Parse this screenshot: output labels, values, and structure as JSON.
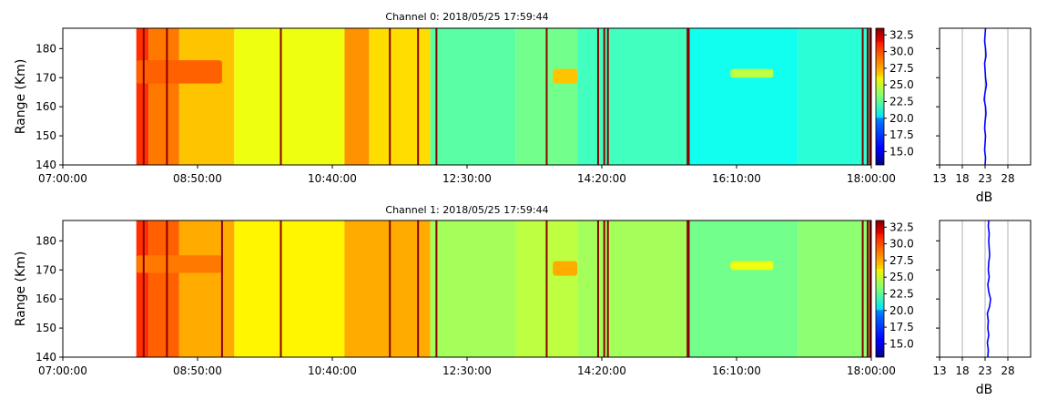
{
  "chart_data": [
    {
      "type": "heatmap",
      "title": "Channel 0: 2018/05/25 17:59:44",
      "ylabel": "Range (Km)",
      "xlim": [
        "07:00:00",
        "18:00:00"
      ],
      "ylim": [
        140,
        187
      ],
      "xticks": [
        "07:00:00",
        "08:50:00",
        "10:40:00",
        "12:30:00",
        "14:20:00",
        "16:10:00",
        "18:00:00"
      ],
      "yticks": [
        140,
        150,
        160,
        170,
        180
      ],
      "colorbar": {
        "min": 13,
        "max": 33.5,
        "ticks": [
          "15.0",
          "17.5",
          "20.0",
          "22.5",
          "25.0",
          "27.5",
          "30.0",
          "32.5"
        ],
        "colormap": "jet"
      },
      "data_start": "08:00:00",
      "segments": [
        {
          "start": "08:00:00",
          "end": "08:10:00",
          "db": 30
        },
        {
          "start": "08:10:00",
          "end": "08:35:00",
          "db": 28.5
        },
        {
          "start": "08:35:00",
          "end": "09:20:00",
          "db": 27
        },
        {
          "start": "09:20:00",
          "end": "10:50:00",
          "db": 25.5
        },
        {
          "start": "10:50:00",
          "end": "11:10:00",
          "db": 28
        },
        {
          "start": "11:10:00",
          "end": "12:00:00",
          "db": 26.5
        },
        {
          "start": "12:00:00",
          "end": "13:10:00",
          "db": 22.5
        },
        {
          "start": "13:10:00",
          "end": "14:00:00",
          "db": 23
        },
        {
          "start": "14:00:00",
          "end": "15:30:00",
          "db": 22
        },
        {
          "start": "15:30:00",
          "end": "17:00:00",
          "db": 21
        },
        {
          "start": "17:00:00",
          "end": "18:00:00",
          "db": 21.5
        }
      ],
      "strong_lines": [
        "08:06:00",
        "08:25:00",
        "09:58:00",
        "11:27:00",
        "11:50:00",
        "12:05:00",
        "13:35:00",
        "14:17:00",
        "14:22:00",
        "14:25:00",
        "15:30:00",
        "15:31:00",
        "17:53:00",
        "17:57:00",
        "17:59:00"
      ],
      "echo_patches": [
        {
          "start": "08:00:00",
          "end": "09:10:00",
          "range_min": 168,
          "range_max": 176,
          "db": 29
        },
        {
          "start": "13:40:00",
          "end": "14:00:00",
          "range_min": 168,
          "range_max": 173,
          "db": 27
        },
        {
          "start": "16:05:00",
          "end": "16:40:00",
          "range_min": 170,
          "range_max": 173,
          "db": 24.5
        }
      ],
      "profile": {
        "xlabel": "dB",
        "xlim": [
          13,
          33
        ],
        "xticks": [
          13,
          18,
          23,
          28
        ],
        "range": [
          140,
          142.5,
          145,
          147.5,
          150,
          152.5,
          155,
          157.5,
          160,
          162.5,
          165,
          167.5,
          170,
          172.5,
          175,
          177.5,
          180,
          182.5,
          185,
          187
        ],
        "values": [
          23,
          23.1,
          22.9,
          23,
          23.1,
          22.9,
          23,
          23.2,
          23.1,
          22.8,
          23,
          23.3,
          23.1,
          23,
          22.9,
          23.2,
          23.1,
          22.9,
          23,
          23.1
        ]
      }
    },
    {
      "type": "heatmap",
      "title": "Channel 1: 2018/05/25 17:59:44",
      "ylabel": "Range (Km)",
      "xlim": [
        "07:00:00",
        "18:00:00"
      ],
      "ylim": [
        140,
        187
      ],
      "xticks": [
        "07:00:00",
        "08:50:00",
        "10:40:00",
        "12:30:00",
        "14:20:00",
        "16:10:00",
        "18:00:00"
      ],
      "yticks": [
        140,
        150,
        160,
        170,
        180
      ],
      "colorbar": {
        "min": 13,
        "max": 33.5,
        "ticks": [
          "15.0",
          "17.5",
          "20.0",
          "22.5",
          "25.0",
          "27.5",
          "30.0",
          "32.5"
        ],
        "colormap": "jet"
      },
      "data_start": "08:00:00",
      "segments": [
        {
          "start": "08:00:00",
          "end": "08:10:00",
          "db": 30
        },
        {
          "start": "08:10:00",
          "end": "08:35:00",
          "db": 29
        },
        {
          "start": "08:35:00",
          "end": "09:20:00",
          "db": 27.5
        },
        {
          "start": "09:20:00",
          "end": "10:50:00",
          "db": 26
        },
        {
          "start": "10:50:00",
          "end": "12:00:00",
          "db": 27.5
        },
        {
          "start": "12:00:00",
          "end": "13:10:00",
          "db": 24
        },
        {
          "start": "13:10:00",
          "end": "14:00:00",
          "db": 24.5
        },
        {
          "start": "14:00:00",
          "end": "15:30:00",
          "db": 24
        },
        {
          "start": "15:30:00",
          "end": "17:00:00",
          "db": 23
        },
        {
          "start": "17:00:00",
          "end": "18:00:00",
          "db": 23.5
        }
      ],
      "strong_lines": [
        "08:06:00",
        "08:25:00",
        "09:10:00",
        "09:58:00",
        "11:27:00",
        "11:50:00",
        "12:05:00",
        "13:35:00",
        "14:17:00",
        "14:22:00",
        "14:25:00",
        "15:30:00",
        "15:31:00",
        "17:53:00",
        "17:57:00",
        "17:59:00"
      ],
      "echo_patches": [
        {
          "start": "08:00:00",
          "end": "09:10:00",
          "range_min": 169,
          "range_max": 175,
          "db": 28.5
        },
        {
          "start": "13:40:00",
          "end": "14:00:00",
          "range_min": 168,
          "range_max": 173,
          "db": 27.5
        },
        {
          "start": "16:05:00",
          "end": "16:40:00",
          "range_min": 170,
          "range_max": 173,
          "db": 25.5
        }
      ],
      "profile": {
        "xlabel": "dB",
        "xlim": [
          13,
          33
        ],
        "xticks": [
          13,
          18,
          23,
          28
        ],
        "range": [
          140,
          142.5,
          145,
          147.5,
          150,
          152.5,
          155,
          157.5,
          160,
          162.5,
          165,
          167.5,
          170,
          172.5,
          175,
          177.5,
          180,
          182.5,
          185,
          187
        ],
        "values": [
          23.6,
          23.7,
          23.5,
          23.8,
          23.6,
          23.7,
          23.5,
          24,
          24.2,
          23.8,
          23.6,
          23.9,
          23.7,
          23.8,
          24,
          23.9,
          23.8,
          23.9,
          23.7,
          23.8
        ]
      }
    }
  ]
}
